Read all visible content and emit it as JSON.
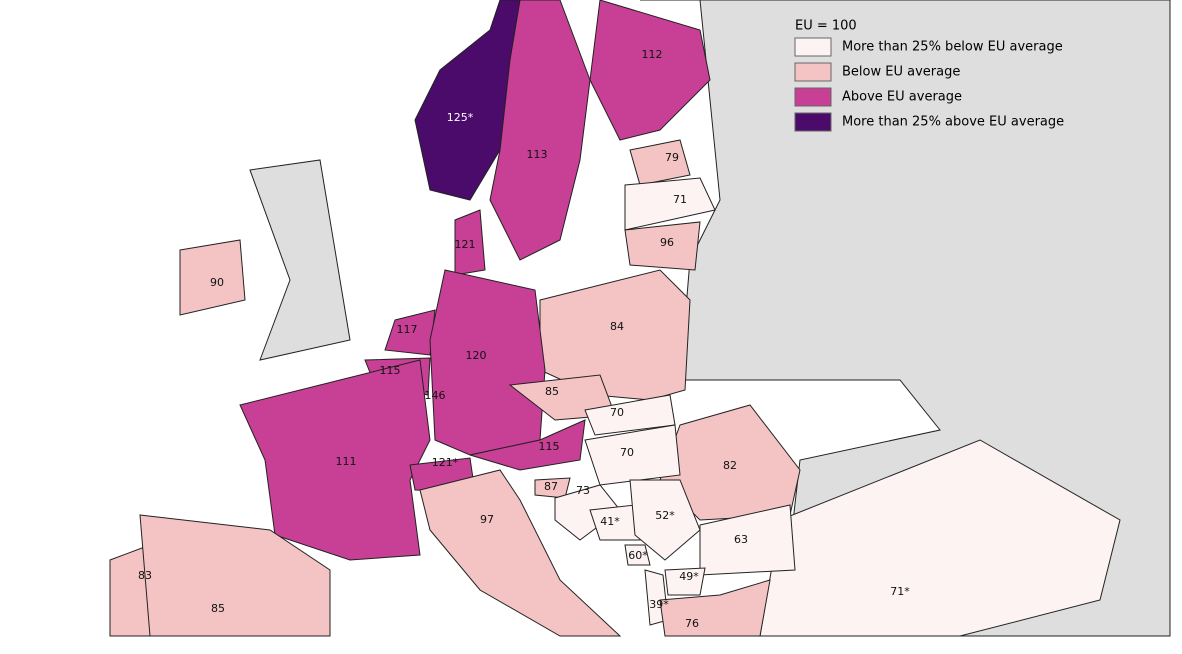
{
  "legend": {
    "title": "EU = 100",
    "items": [
      {
        "label": "More than 25% below EU average",
        "color": "#fcf3f2"
      },
      {
        "label": "Below EU average",
        "color": "#f3c4c3"
      },
      {
        "label": "Above EU average",
        "color": "#c83f96"
      },
      {
        "label": "More than 25% above EU average",
        "color": "#4a0b6a"
      }
    ]
  },
  "regions": [
    {
      "label": "112",
      "color": "#c83f96"
    },
    {
      "label": "125*",
      "color": "#4a0b6a"
    },
    {
      "label": "113",
      "color": "#c83f96"
    },
    {
      "label": "79",
      "color": "#f3c4c3"
    },
    {
      "label": "71",
      "color": "#fcf3f2"
    },
    {
      "label": "121",
      "color": "#c83f96"
    },
    {
      "label": "96",
      "color": "#f3c4c3"
    },
    {
      "label": "90",
      "color": "#f3c4c3"
    },
    {
      "label": "84",
      "color": "#f3c4c3"
    },
    {
      "label": "117",
      "color": "#c83f96"
    },
    {
      "label": "120",
      "color": "#c83f96"
    },
    {
      "label": "115",
      "color": "#c83f96"
    },
    {
      "label": "146",
      "color": "#4a0b6a"
    },
    {
      "label": "85",
      "color": "#f3c4c3"
    },
    {
      "label": "70",
      "color": "#fcf3f2"
    },
    {
      "label": "111",
      "color": "#c83f96"
    },
    {
      "label": "121*",
      "color": "#c83f96"
    },
    {
      "label": "115",
      "color": "#c83f96"
    },
    {
      "label": "82",
      "color": "#f3c4c3"
    },
    {
      "label": "70",
      "color": "#fcf3f2"
    },
    {
      "label": "87",
      "color": "#f3c4c3"
    },
    {
      "label": "73",
      "color": "#fcf3f2"
    },
    {
      "label": "97",
      "color": "#f3c4c3"
    },
    {
      "label": "41*",
      "color": "#fcf3f2"
    },
    {
      "label": "52*",
      "color": "#fcf3f2"
    },
    {
      "label": "63",
      "color": "#fcf3f2"
    },
    {
      "label": "60*",
      "color": "#fcf3f2"
    },
    {
      "label": "49*",
      "color": "#fcf3f2"
    },
    {
      "label": "71*",
      "color": "#fcf3f2"
    },
    {
      "label": "83",
      "color": "#f3c4c3"
    },
    {
      "label": "85",
      "color": "#f3c4c3"
    },
    {
      "label": "39*",
      "color": "#fcf3f2"
    },
    {
      "label": "76",
      "color": "#f3c4c3"
    }
  ]
}
